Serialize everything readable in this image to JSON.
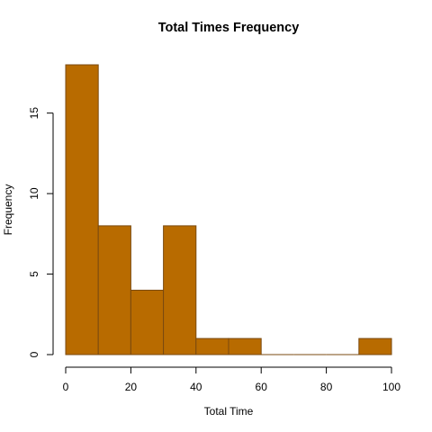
{
  "chart_data": {
    "type": "bar",
    "title": "Total Times Frequency",
    "xlabel": "Total Time",
    "ylabel": "Frequency",
    "bins": [
      {
        "start": 0,
        "end": 10,
        "value": 18
      },
      {
        "start": 10,
        "end": 20,
        "value": 8
      },
      {
        "start": 20,
        "end": 30,
        "value": 4
      },
      {
        "start": 30,
        "end": 40,
        "value": 8
      },
      {
        "start": 40,
        "end": 50,
        "value": 1
      },
      {
        "start": 50,
        "end": 60,
        "value": 1
      },
      {
        "start": 60,
        "end": 70,
        "value": 0
      },
      {
        "start": 70,
        "end": 80,
        "value": 0
      },
      {
        "start": 80,
        "end": 90,
        "value": 0
      },
      {
        "start": 90,
        "end": 100,
        "value": 1
      }
    ],
    "xlim": [
      0,
      100
    ],
    "ylim": [
      0,
      18
    ],
    "xticks": [
      0,
      20,
      40,
      60,
      80,
      100
    ],
    "yticks": [
      0,
      5,
      10,
      15
    ],
    "bar_color": "#b86b00",
    "bar_border_color": "#7a4a10",
    "grid": false,
    "legend": "none"
  }
}
